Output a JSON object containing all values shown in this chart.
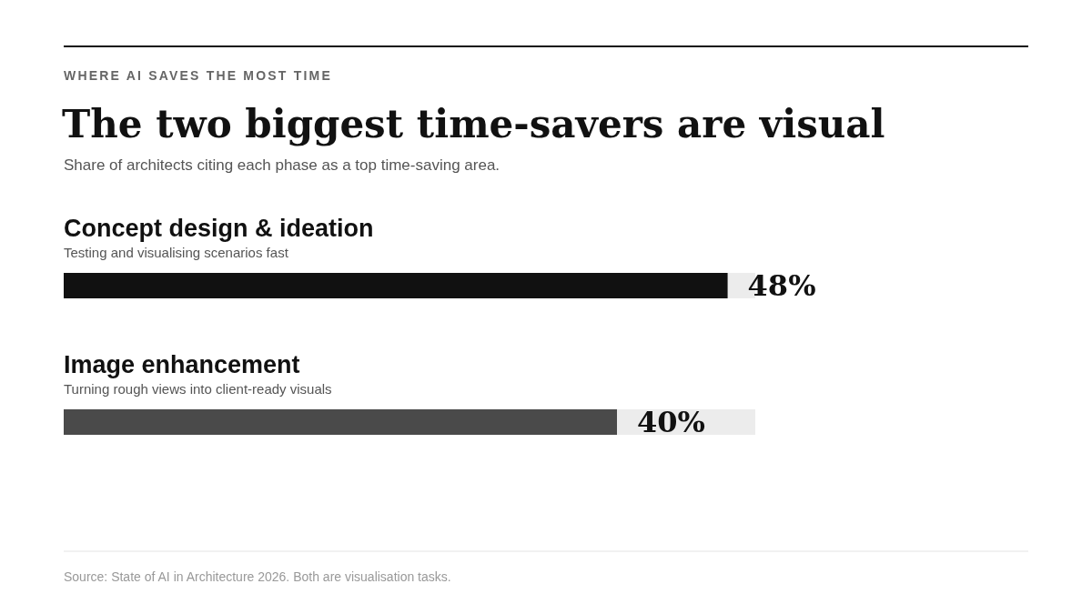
{
  "chart_data": {
    "type": "bar",
    "orientation": "horizontal",
    "title": "The two biggest time-savers are visual",
    "subtitle": "Share of architects citing each phase as a top time-saving area.",
    "categories": [
      "Concept design & ideation",
      "Image enhancement"
    ],
    "values": [
      48,
      40
    ],
    "colors": [
      "#111111",
      "#4a4a4a"
    ],
    "value_labels": [
      "48%",
      "40%"
    ],
    "xlim": [
      0,
      50
    ],
    "tick_labels": false,
    "annotations": [
      "WHERE AI SAVES THE MOST TIME",
      "Testing and visualising scenarios fast",
      "Turning rough views into client-ready visuals",
      "Source: State of AI in Architecture 2026. Both are visualisation tasks."
    ]
  }
}
